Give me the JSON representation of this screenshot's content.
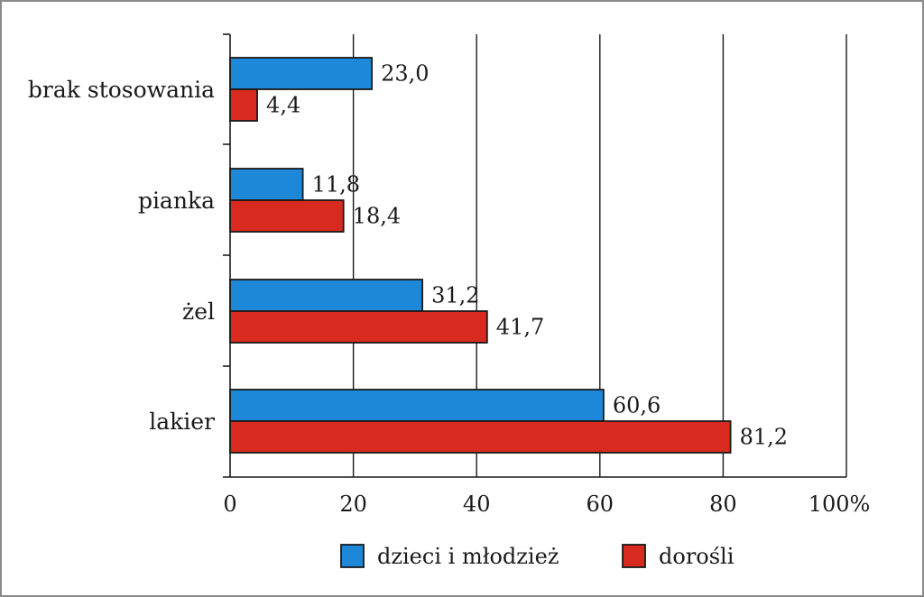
{
  "chart_data": {
    "type": "bar",
    "orientation": "horizontal",
    "categories": [
      "brak stosowania",
      "pianka",
      "żel",
      "lakier"
    ],
    "series": [
      {
        "name": "dzieci i młodzież",
        "color": "#1e88d8",
        "values": [
          23.0,
          11.8,
          31.2,
          60.6
        ],
        "labels": [
          "23,0",
          "11,8",
          "31,2",
          "60,6"
        ]
      },
      {
        "name": "dorośli",
        "color": "#d82a1e",
        "values": [
          4.4,
          18.4,
          41.7,
          81.2
        ],
        "labels": [
          "4,4",
          "18,4",
          "41,7",
          "81,2"
        ]
      }
    ],
    "xlim": [
      0,
      100
    ],
    "xticks": [
      0,
      20,
      40,
      60,
      80,
      100
    ],
    "xtick_labels": [
      "0",
      "20",
      "40",
      "60",
      "80",
      "100%"
    ],
    "grid": "vertical",
    "legend_position": "bottom"
  }
}
